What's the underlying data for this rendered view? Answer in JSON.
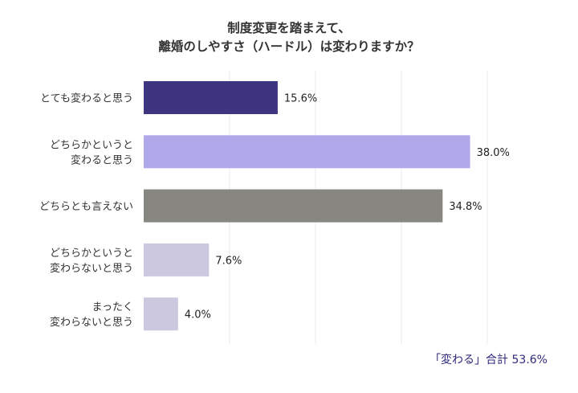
{
  "chart_data": {
    "type": "bar",
    "orientation": "horizontal",
    "title_lines": [
      "制度変更を踏まえて、",
      "離婚のしやすさ（ハードル）は変わりますか？"
    ],
    "categories": [
      [
        "とても変わると思う"
      ],
      [
        "どちらかというと",
        "変わると思う"
      ],
      [
        "どちらとも言えない"
      ],
      [
        "どちらかというと",
        "変わらないと思う"
      ],
      [
        "まったく",
        "変わらないと思う"
      ]
    ],
    "values": [
      15.6,
      38.0,
      34.8,
      7.6,
      4.0
    ],
    "value_labels": [
      "15.6%",
      "38.0%",
      "34.8%",
      "7.6%",
      "4.0%"
    ],
    "colors": [
      "#3d3580",
      "#afa8ea",
      "#878681",
      "#cbc8e0",
      "#cbc8e0"
    ],
    "xlim": [
      0,
      40
    ],
    "grid": true,
    "gridline_step": 10,
    "xlabel": "",
    "ylabel": ""
  },
  "footer": "「変わる」合計 53.6%",
  "footer_color": "#2e2a7a"
}
